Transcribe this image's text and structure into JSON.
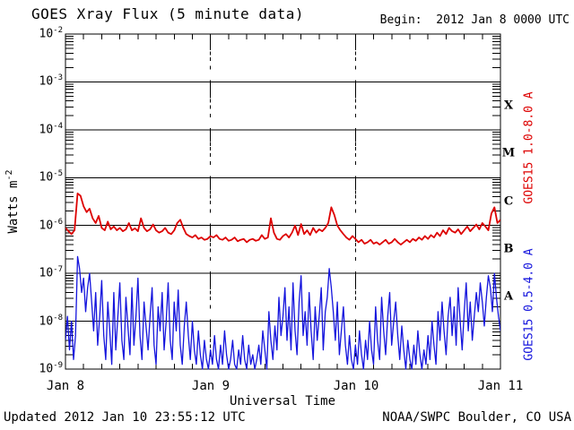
{
  "header": {
    "title": "GOES Xray Flux (5 minute data)",
    "begin_label": "Begin:  2012 Jan 8 0000 UTC"
  },
  "footer": {
    "updated": "Updated 2012 Jan 10 23:55:12 UTC",
    "source": "NOAA/SWPC Boulder, CO USA"
  },
  "colors": {
    "long_channel_red": "#dd0000",
    "short_channel_blue": "#1414dd",
    "axes": "#000000",
    "background": "#ffffff"
  },
  "chart_data": {
    "type": "line",
    "title": "GOES Xray Flux (5 minute data)",
    "xlabel": "Universal Time",
    "ylabel_base": "Watts m",
    "ylabel_exponent": "-2",
    "x_axis": {
      "start": "2012 Jan 8 0000 UTC",
      "end": "2012 Jan 11 0000 UTC",
      "tick_hours": [
        0,
        24,
        48,
        72
      ],
      "tick_labels": [
        "Jan 8",
        "Jan 9",
        "Jan 10",
        "Jan 11"
      ],
      "minor_tick_interval_hours": 3
    },
    "xlim_hours": [
      0,
      72
    ],
    "ylim_log10": [
      -9,
      -2
    ],
    "y_tick_exponents": [
      -2,
      -3,
      -4,
      -5,
      -6,
      -7,
      -8,
      -9
    ],
    "flare_class_letters": [
      "X",
      "M",
      "C",
      "B",
      "A"
    ],
    "grid": {
      "h_line_exponents": [
        -3,
        -4,
        -5,
        -6,
        -7,
        -8
      ],
      "v_dashed_hours": [
        24,
        48
      ]
    },
    "series": [
      {
        "name": "GOES15 1.0-8.0 A",
        "color": "#dd0000",
        "stroke_width": 1.8,
        "dt_hours": 0.5,
        "log10_watts_m2": [
          -6.05,
          -6.12,
          -6.18,
          -6.1,
          -5.33,
          -5.38,
          -5.6,
          -5.72,
          -5.65,
          -5.85,
          -5.95,
          -5.8,
          -6.05,
          -6.1,
          -5.92,
          -6.08,
          -6.02,
          -6.1,
          -6.05,
          -6.12,
          -6.08,
          -5.95,
          -6.1,
          -6.06,
          -6.12,
          -5.85,
          -6.05,
          -6.12,
          -6.08,
          -5.98,
          -6.1,
          -6.15,
          -6.12,
          -6.05,
          -6.15,
          -6.18,
          -6.1,
          -5.95,
          -5.88,
          -6.05,
          -6.18,
          -6.22,
          -6.25,
          -6.2,
          -6.28,
          -6.25,
          -6.3,
          -6.28,
          -6.22,
          -6.25,
          -6.2,
          -6.28,
          -6.3,
          -6.25,
          -6.32,
          -6.3,
          -6.25,
          -6.33,
          -6.3,
          -6.28,
          -6.35,
          -6.3,
          -6.28,
          -6.32,
          -6.3,
          -6.2,
          -6.28,
          -6.25,
          -5.85,
          -6.15,
          -6.28,
          -6.3,
          -6.22,
          -6.18,
          -6.25,
          -6.15,
          -6.0,
          -6.2,
          -5.97,
          -6.18,
          -6.1,
          -6.2,
          -6.05,
          -6.15,
          -6.08,
          -6.12,
          -6.05,
          -5.95,
          -5.62,
          -5.78,
          -6.0,
          -6.1,
          -6.18,
          -6.25,
          -6.3,
          -6.22,
          -6.28,
          -6.35,
          -6.3,
          -6.38,
          -6.35,
          -6.3,
          -6.38,
          -6.35,
          -6.4,
          -6.35,
          -6.3,
          -6.38,
          -6.35,
          -6.28,
          -6.35,
          -6.4,
          -6.35,
          -6.3,
          -6.35,
          -6.28,
          -6.32,
          -6.25,
          -6.3,
          -6.22,
          -6.28,
          -6.2,
          -6.25,
          -6.15,
          -6.22,
          -6.1,
          -6.18,
          -6.05,
          -6.12,
          -6.15,
          -6.08,
          -6.18,
          -6.1,
          -6.02,
          -6.12,
          -6.05,
          -5.98,
          -6.08,
          -5.95,
          -6.02,
          -6.1,
          -5.75,
          -5.62,
          -5.95,
          -5.88
        ]
      },
      {
        "name": "GOES15 0.5-4.0 A",
        "color": "#1414dd",
        "stroke_width": 1.3,
        "dt_hours": 0.3333333,
        "log10_watts_m2": [
          -8.4,
          -7.9,
          -8.6,
          -8.0,
          -8.8,
          -8.3,
          -6.65,
          -6.9,
          -7.4,
          -7.1,
          -7.8,
          -7.3,
          -7.0,
          -7.6,
          -8.2,
          -7.4,
          -8.5,
          -7.9,
          -7.15,
          -8.3,
          -8.8,
          -7.6,
          -8.2,
          -8.9,
          -7.4,
          -8.6,
          -7.9,
          -7.2,
          -8.4,
          -8.8,
          -7.5,
          -8.1,
          -8.7,
          -7.3,
          -8.5,
          -7.9,
          -7.1,
          -8.3,
          -8.8,
          -7.6,
          -8.1,
          -8.6,
          -7.9,
          -7.3,
          -8.5,
          -8.9,
          -7.7,
          -8.2,
          -7.4,
          -8.6,
          -8.0,
          -7.2,
          -8.4,
          -8.8,
          -7.6,
          -8.2,
          -7.35,
          -8.5,
          -8.9,
          -8.1,
          -7.6,
          -8.3,
          -8.8,
          -8.0,
          -8.6,
          -8.9,
          -8.2,
          -8.7,
          -9.0,
          -8.4,
          -8.8,
          -9.0,
          -8.6,
          -8.9,
          -8.3,
          -8.8,
          -9.0,
          -8.5,
          -8.9,
          -8.2,
          -8.7,
          -9.0,
          -8.8,
          -8.4,
          -8.9,
          -9.0,
          -8.6,
          -8.9,
          -8.3,
          -8.8,
          -9.0,
          -8.5,
          -8.9,
          -8.7,
          -9.0,
          -8.8,
          -8.5,
          -8.9,
          -8.2,
          -8.6,
          -9.0,
          -7.8,
          -8.4,
          -8.8,
          -8.1,
          -8.6,
          -7.5,
          -8.3,
          -7.9,
          -7.3,
          -8.4,
          -7.7,
          -8.6,
          -7.2,
          -8.2,
          -8.7,
          -7.6,
          -7.05,
          -8.3,
          -7.8,
          -8.5,
          -7.4,
          -8.2,
          -8.8,
          -7.7,
          -8.4,
          -7.9,
          -7.3,
          -8.6,
          -7.8,
          -7.5,
          -6.9,
          -7.3,
          -7.8,
          -8.4,
          -7.6,
          -8.7,
          -8.2,
          -7.7,
          -8.5,
          -8.9,
          -8.3,
          -8.8,
          -9.0,
          -8.5,
          -8.9,
          -8.2,
          -8.7,
          -9.0,
          -8.4,
          -8.8,
          -8.0,
          -8.6,
          -8.9,
          -7.7,
          -8.4,
          -8.8,
          -7.5,
          -8.2,
          -8.7,
          -7.9,
          -7.4,
          -8.5,
          -8.0,
          -7.6,
          -8.3,
          -8.8,
          -8.1,
          -8.6,
          -9.0,
          -8.4,
          -8.8,
          -9.0,
          -8.5,
          -8.9,
          -8.2,
          -8.7,
          -9.0,
          -8.6,
          -8.9,
          -8.3,
          -8.8,
          -8.0,
          -8.5,
          -8.9,
          -7.8,
          -8.4,
          -7.6,
          -8.2,
          -8.7,
          -7.9,
          -7.5,
          -8.3,
          -7.7,
          -8.5,
          -7.3,
          -8.0,
          -8.6,
          -7.8,
          -7.2,
          -8.2,
          -7.6,
          -8.4,
          -7.9,
          -7.4,
          -7.8,
          -7.2,
          -7.6,
          -8.1,
          -7.5,
          -7.05,
          -7.3,
          -7.8,
          -7.0,
          -7.5,
          -7.9,
          -8.2
        ]
      }
    ]
  }
}
